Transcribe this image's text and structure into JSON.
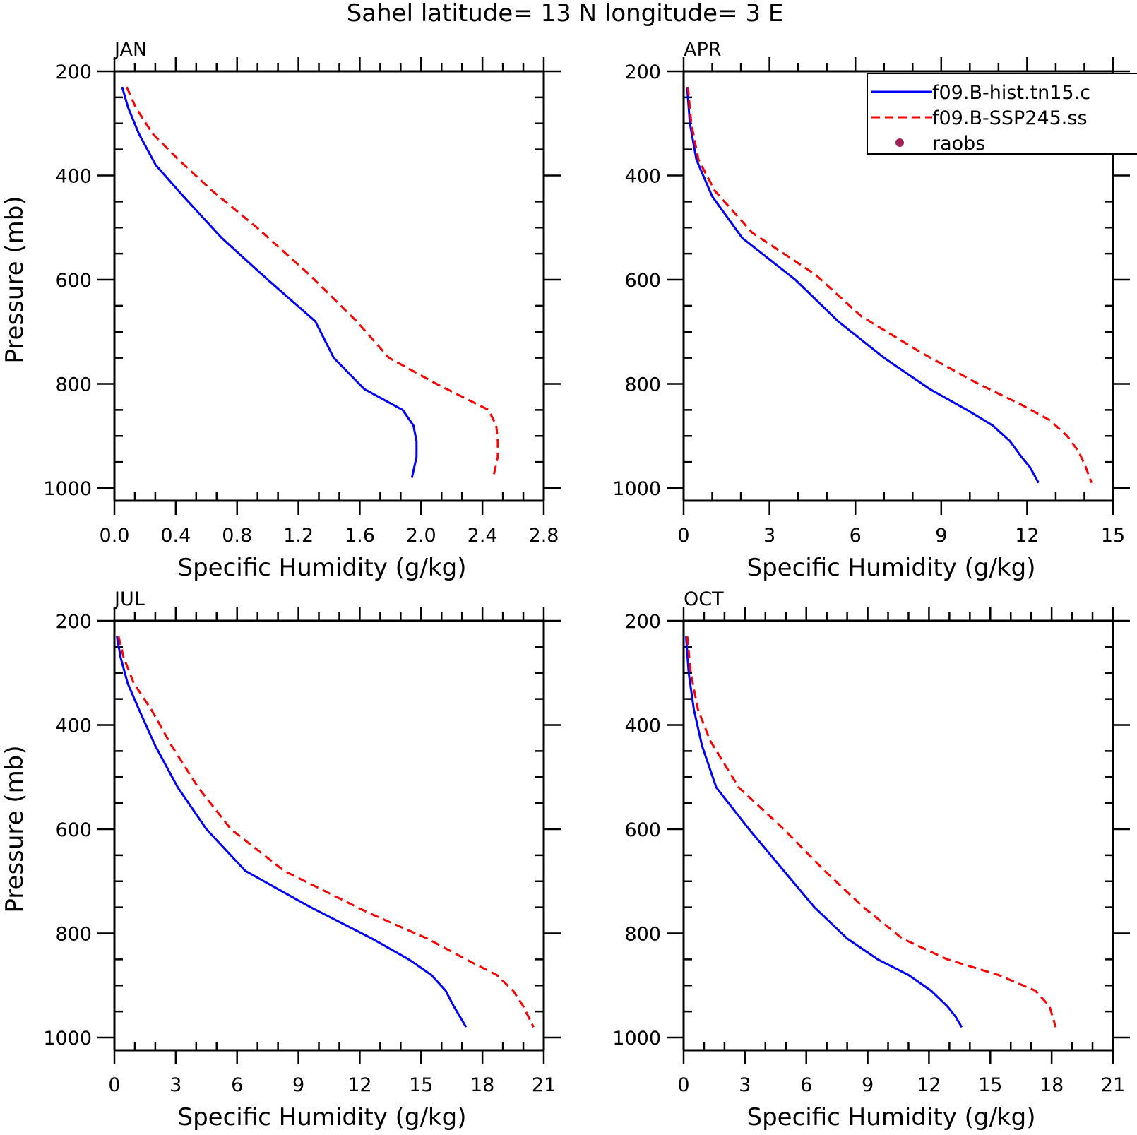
{
  "title": "Sahel  latitude= 13 N longitude= 3 E",
  "legend": {
    "entries": [
      {
        "label": "f09.B-hist.tn15.c",
        "color": "#0000ff",
        "style": "solid"
      },
      {
        "label": "f09.B-SSP245.ss",
        "color": "#ff0000",
        "style": "dashed"
      },
      {
        "label": "raobs",
        "color": "#a0225a",
        "style": "marker"
      }
    ]
  },
  "chart_data": [
    {
      "type": "line",
      "panel": "JAN",
      "xlabel": "Specific Humidity (g/kg)",
      "ylabel": "Pressure (mb)",
      "xlim": [
        0,
        2.8
      ],
      "xticks": [
        "0.0",
        "0.4",
        "0.8",
        "1.2",
        "1.6",
        "2.0",
        "2.4",
        "2.8"
      ],
      "xtick_values": [
        0,
        0.4,
        0.8,
        1.2,
        1.6,
        2.0,
        2.4,
        2.8
      ],
      "ylim": [
        1000,
        200
      ],
      "yticks": [
        "200",
        "400",
        "600",
        "800",
        "1000"
      ],
      "ytick_values": [
        200,
        400,
        600,
        800,
        1000
      ],
      "series": [
        {
          "name": "f09.B-hist.tn15.c",
          "x": [
            0.05,
            0.09,
            0.16,
            0.27,
            0.45,
            0.7,
            1.0,
            1.31,
            1.43,
            1.63,
            1.88,
            1.95,
            1.97,
            1.97,
            1.94
          ],
          "y": [
            230,
            270,
            320,
            380,
            440,
            520,
            600,
            680,
            750,
            810,
            850,
            880,
            910,
            940,
            980
          ]
        },
        {
          "name": "f09.B-SSP245.ss",
          "x": [
            0.08,
            0.14,
            0.25,
            0.42,
            0.64,
            0.93,
            1.27,
            1.58,
            1.79,
            2.1,
            2.44,
            2.49,
            2.5,
            2.5,
            2.47
          ],
          "y": [
            230,
            270,
            320,
            370,
            430,
            500,
            590,
            680,
            750,
            800,
            850,
            880,
            910,
            940,
            980
          ]
        }
      ]
    },
    {
      "type": "line",
      "panel": "APR",
      "xlabel": "Specific Humidity (g/kg)",
      "ylabel": "Pressure (mb)",
      "xlim": [
        0,
        15
      ],
      "xticks": [
        "0",
        "3",
        "6",
        "9",
        "12",
        "15"
      ],
      "xtick_values": [
        0,
        3,
        6,
        9,
        12,
        15
      ],
      "ylim": [
        1000,
        200
      ],
      "yticks": [
        "200",
        "400",
        "600",
        "800",
        "1000"
      ],
      "ytick_values": [
        200,
        400,
        600,
        800,
        1000
      ],
      "series": [
        {
          "name": "f09.B-hist.tn15.c",
          "x": [
            0.12,
            0.22,
            0.45,
            1.0,
            2.05,
            3.9,
            5.4,
            7.0,
            8.6,
            9.9,
            10.8,
            11.4,
            11.8,
            12.1,
            12.4
          ],
          "y": [
            230,
            300,
            370,
            440,
            520,
            600,
            680,
            750,
            810,
            850,
            880,
            910,
            940,
            960,
            990
          ]
        },
        {
          "name": "f09.B-SSP245.ss",
          "x": [
            0.15,
            0.27,
            0.52,
            1.1,
            2.4,
            4.6,
            6.2,
            8.3,
            10.3,
            11.8,
            12.8,
            13.4,
            13.8,
            14.05,
            14.25
          ],
          "y": [
            230,
            300,
            370,
            430,
            510,
            590,
            670,
            740,
            800,
            840,
            870,
            900,
            930,
            960,
            990
          ]
        }
      ]
    },
    {
      "type": "line",
      "panel": "JUL",
      "xlabel": "Specific Humidity (g/kg)",
      "ylabel": "Pressure (mb)",
      "xlim": [
        0,
        21
      ],
      "xticks": [
        "0",
        "3",
        "6",
        "9",
        "12",
        "15",
        "18",
        "21"
      ],
      "xtick_values": [
        0,
        3,
        6,
        9,
        12,
        15,
        18,
        21
      ],
      "ylim": [
        1000,
        200
      ],
      "yticks": [
        "200",
        "400",
        "600",
        "800",
        "1000"
      ],
      "ytick_values": [
        200,
        400,
        600,
        800,
        1000
      ],
      "series": [
        {
          "name": "f09.B-hist.tn15.c",
          "x": [
            0.12,
            0.3,
            0.65,
            1.2,
            2.0,
            3.1,
            4.5,
            6.4,
            9.6,
            12.6,
            14.4,
            15.5,
            16.2,
            16.6,
            17.2
          ],
          "y": [
            230,
            270,
            320,
            370,
            440,
            520,
            600,
            680,
            750,
            810,
            850,
            880,
            910,
            940,
            980
          ]
        },
        {
          "name": "f09.B-SSP245.ss",
          "x": [
            0.2,
            0.45,
            0.95,
            1.8,
            2.8,
            4.1,
            5.7,
            8.3,
            12.4,
            15.3,
            17.2,
            18.7,
            19.5,
            20.0,
            20.5
          ],
          "y": [
            230,
            270,
            320,
            370,
            440,
            520,
            600,
            680,
            760,
            810,
            850,
            880,
            910,
            940,
            980
          ]
        }
      ]
    },
    {
      "type": "line",
      "panel": "OCT",
      "xlabel": "Specific Humidity (g/kg)",
      "ylabel": "Pressure (mb)",
      "xlim": [
        0,
        21
      ],
      "xticks": [
        "0",
        "3",
        "6",
        "9",
        "12",
        "15",
        "18",
        "21"
      ],
      "xtick_values": [
        0,
        3,
        6,
        9,
        12,
        15,
        18,
        21
      ],
      "ylim": [
        1000,
        200
      ],
      "yticks": [
        "200",
        "400",
        "600",
        "800",
        "1000"
      ],
      "ytick_values": [
        200,
        400,
        600,
        800,
        1000
      ],
      "series": [
        {
          "name": "f09.B-hist.tn15.c",
          "x": [
            0.12,
            0.25,
            0.5,
            0.9,
            1.6,
            3.2,
            4.9,
            6.4,
            8.0,
            9.5,
            11.0,
            12.1,
            12.9,
            13.3,
            13.6
          ],
          "y": [
            230,
            300,
            370,
            440,
            520,
            600,
            680,
            750,
            810,
            850,
            880,
            910,
            940,
            960,
            980
          ]
        },
        {
          "name": "f09.B-SSP245.ss",
          "x": [
            0.18,
            0.35,
            0.7,
            1.3,
            2.7,
            4.9,
            6.9,
            8.8,
            10.7,
            12.9,
            15.4,
            17.2,
            17.9,
            18.2
          ],
          "y": [
            230,
            300,
            370,
            430,
            520,
            600,
            680,
            750,
            810,
            850,
            880,
            910,
            940,
            980
          ]
        }
      ]
    }
  ]
}
